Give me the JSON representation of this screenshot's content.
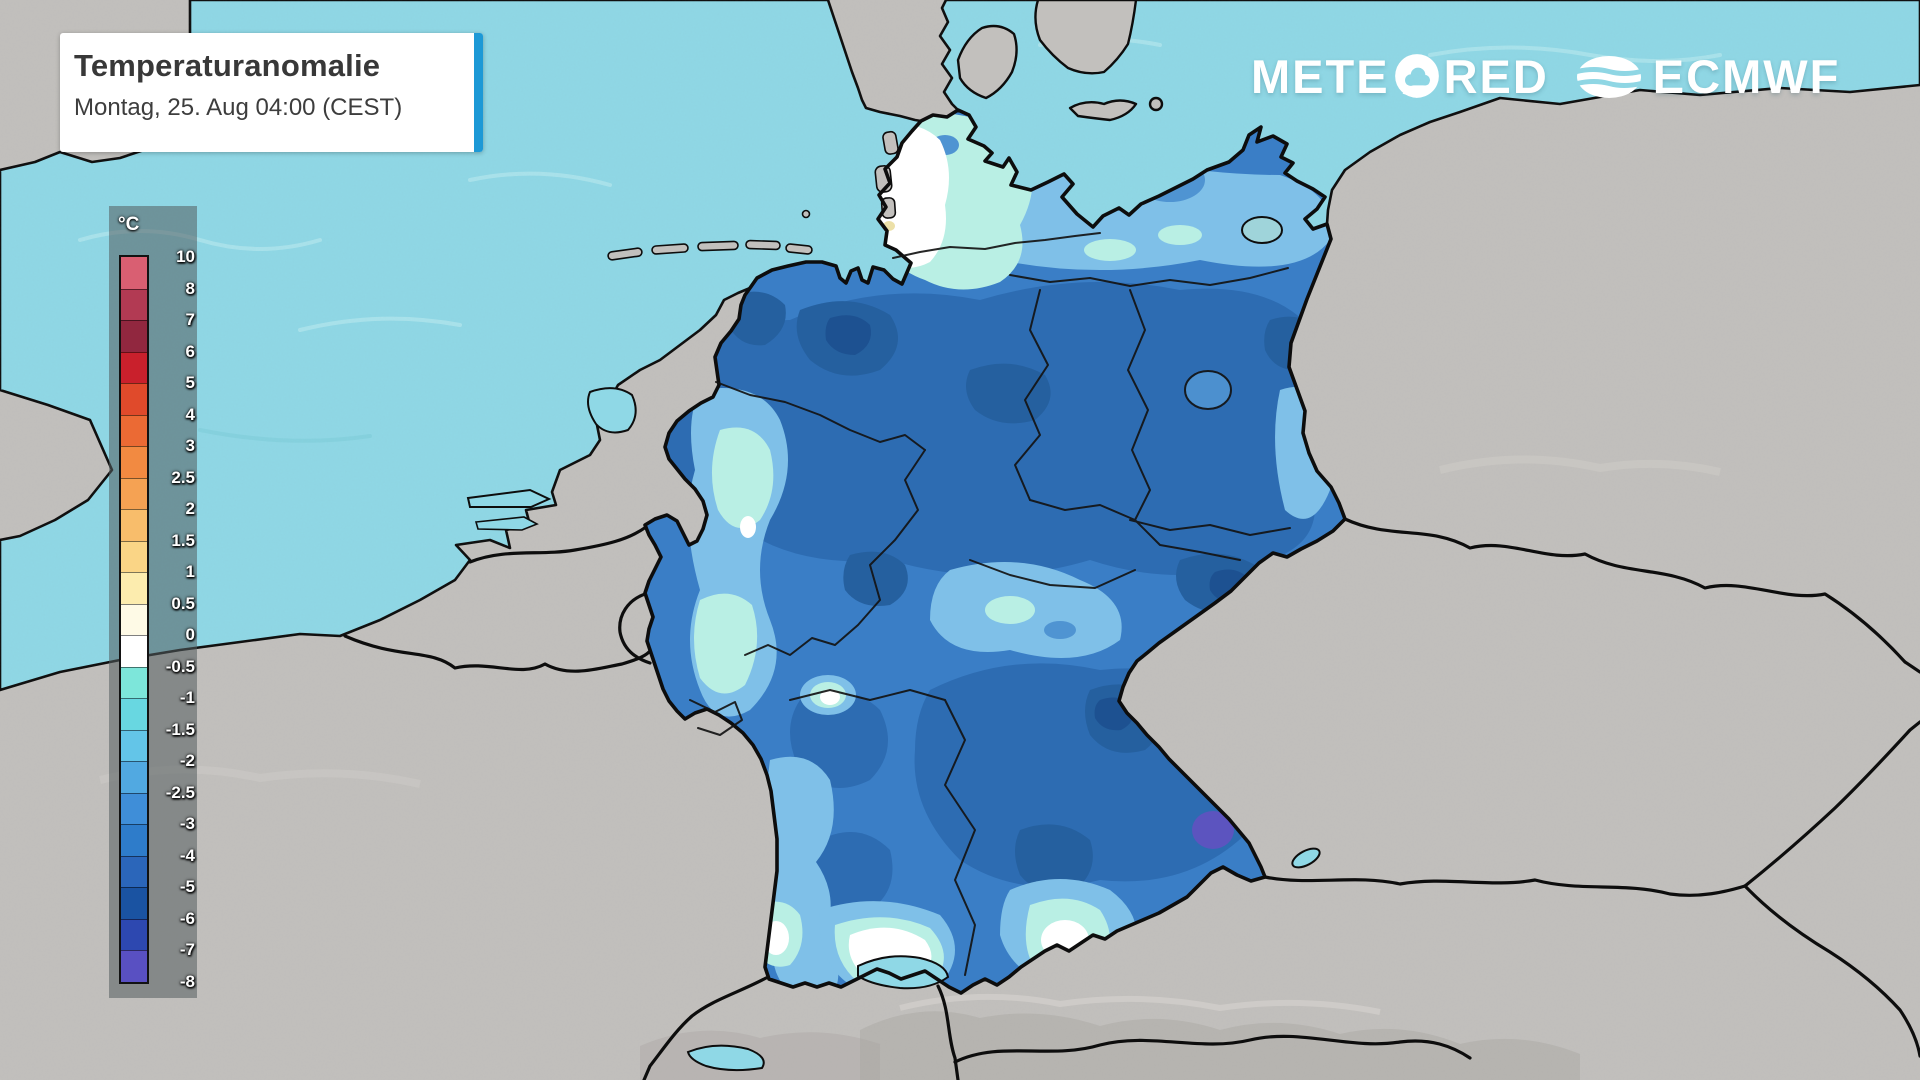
{
  "header": {
    "title": "Temperaturanomalie",
    "subtitle": "Montag, 25. Aug 04:00 (CEST)"
  },
  "branding": {
    "meteored_prefix": "METE",
    "meteored_suffix": "RED",
    "ecmwf_label": "ECMWF"
  },
  "legend": {
    "unit": "°C",
    "ticks": [
      "10",
      "8",
      "7",
      "6",
      "5",
      "4",
      "3",
      "2.5",
      "2",
      "1.5",
      "1",
      "0.5",
      "0",
      "-0.5",
      "-1",
      "-1.5",
      "-2",
      "-2.5",
      "-3",
      "-4",
      "-5",
      "-6",
      "-7",
      "-8"
    ],
    "swatch_colors": [
      "#d95f72",
      "#b23a53",
      "#91273f",
      "#c9202c",
      "#e04a2b",
      "#eb6a34",
      "#f28a41",
      "#f5a253",
      "#f8bd6b",
      "#fad586",
      "#fcecae",
      "#fefae6",
      "#ffffff",
      "#7de6da",
      "#68d7e1",
      "#63c5e8",
      "#51a9e1",
      "#3f8ed8",
      "#2e7cca",
      "#2b66ba",
      "#1a53a2",
      "#2d48b0",
      "#5950c2"
    ]
  },
  "map": {
    "region_label": "germany-temperature-anomaly-field",
    "colors": {
      "sea": "#8fd8e6",
      "land": "#c2c0bd",
      "land_shade": "#a9a6a2",
      "border": "#0d0d0d",
      "germany_base": "#3a7ec6",
      "anom_dark": "#2d6cb2",
      "anom_darker": "#25609f",
      "anom_darkest": "#1d5191",
      "anom_violet": "#5c54bf",
      "anom_light": "#7fc0e8",
      "anom_mid": "#4f94d2",
      "anom_mint": "#b9efe4",
      "anom_white": "#ffffff",
      "anom_warm": "#df9a50",
      "anom_paleyellow": "#ece0a8",
      "accent": "#1d99d6",
      "panel_color": "rgba(84,92,94,0.55)"
    }
  }
}
